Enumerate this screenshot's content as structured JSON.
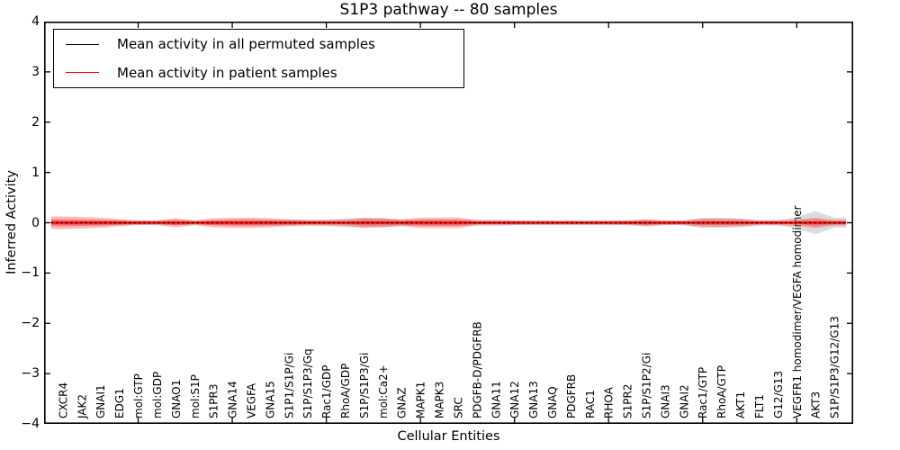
{
  "figure": {
    "title": "S1P3 pathway -- 80 samples"
  },
  "axes": {
    "ylabel": "Inferred Activity",
    "xlabel": "Cellular Entities",
    "ytick_labels": [
      "4",
      "3",
      "2",
      "1",
      "0",
      "−1",
      "−2",
      "−3",
      "−4"
    ],
    "ytick_values": [
      4,
      3,
      2,
      1,
      0,
      -1,
      -2,
      -3,
      -4
    ],
    "xtick_values": [
      5,
      10,
      15,
      20,
      25,
      30,
      35,
      40
    ],
    "frame_color": "#000000"
  },
  "legend": {
    "items": [
      {
        "label": "Mean activity in all permuted samples",
        "color": "#000000"
      },
      {
        "label": "Mean activity in patient samples",
        "color": "#ff0000"
      }
    ]
  },
  "chart_data": {
    "type": "line",
    "title": "S1P3 pathway -- 80 samples",
    "xlabel": "Cellular Entities",
    "ylabel": "Inferred Activity",
    "ylim": [
      -4,
      4
    ],
    "xlim": [
      0,
      43
    ],
    "legend_position": "upper left",
    "grid": false,
    "categories": [
      "CXCR4",
      "JAK2",
      "GNAI1",
      "EDG1",
      "mol:GTP",
      "mol:GDP",
      "GNAO1",
      "mol:S1P",
      "S1PR3",
      "GNA14",
      "VEGFA",
      "GNA15",
      "S1P1/S1P/Gi",
      "S1P/S1P3/Gq",
      "Rac1/GDP",
      "RhoA/GDP",
      "S1P/S1P3/Gi",
      "mol:Ca2+",
      "GNAZ",
      "MAPK1",
      "MAPK3",
      "SRC",
      "PDGFB-D/PDGFRB",
      "GNA11",
      "GNA12",
      "GNA13",
      "GNAQ",
      "PDGFRB",
      "RAC1",
      "RHOA",
      "S1PR2",
      "S1P/S1P2/Gi",
      "GNAI3",
      "GNAI2",
      "Rac1/GTP",
      "RhoA/GTP",
      "AKT1",
      "FLT1",
      "G12/G13",
      "VEGFR1 homodimer/VEGFA homodimer",
      "AKT3",
      "S1P/S1P3/G12/G13"
    ],
    "series": [
      {
        "name": "Mean activity in all permuted samples",
        "color": "#000000",
        "style": "dotted",
        "values": [
          0,
          0,
          0,
          0,
          0,
          0,
          0,
          0,
          0,
          0,
          0,
          0,
          0,
          0,
          0,
          0,
          0,
          0,
          0,
          0,
          0,
          0,
          0,
          0,
          0,
          0,
          0,
          0,
          0,
          0,
          0,
          0,
          0,
          0,
          0,
          0,
          0,
          0,
          0,
          0,
          0,
          0
        ]
      },
      {
        "name": "Mean activity in patient samples",
        "color": "#ff0000",
        "style": "solid",
        "values": [
          0,
          0,
          0,
          0,
          0,
          0,
          0,
          0,
          0,
          0,
          0,
          0,
          0,
          0,
          0,
          0,
          0,
          0,
          0,
          0,
          0,
          0,
          0,
          0,
          0,
          0,
          0,
          0,
          0,
          0,
          0,
          0,
          0,
          0,
          0,
          0,
          0,
          0,
          0,
          0,
          0,
          0
        ]
      }
    ],
    "bands": [
      {
        "name": "permuted-samples-spread",
        "color": "#808080",
        "alpha": 0.28,
        "half_heights": [
          0.05,
          0.05,
          0.05,
          0.05,
          0.05,
          0.05,
          0.05,
          0.05,
          0.05,
          0.055,
          0.055,
          0.055,
          0.055,
          0.055,
          0.06,
          0.09,
          0.09,
          0.09,
          0.06,
          0.06,
          0.06,
          0.06,
          0.06,
          0.06,
          0.05,
          0.05,
          0.05,
          0.05,
          0.05,
          0.05,
          0.05,
          0.06,
          0.05,
          0.05,
          0.1,
          0.1,
          0.09,
          0.055,
          0.055,
          0.115,
          0.23,
          0.1
        ]
      },
      {
        "name": "patient-samples-spread",
        "color": "#ff0000",
        "alpha": 0.28,
        "half_heights": [
          0.125,
          0.115,
          0.1,
          0.07,
          0.045,
          0.045,
          0.09,
          0.045,
          0.09,
          0.1,
          0.1,
          0.09,
          0.07,
          0.055,
          0.055,
          0.06,
          0.1,
          0.09,
          0.07,
          0.1,
          0.105,
          0.105,
          0.05,
          0.05,
          0.045,
          0.04,
          0.04,
          0.04,
          0.04,
          0.04,
          0.045,
          0.07,
          0.045,
          0.045,
          0.08,
          0.08,
          0.07,
          0.045,
          0.045,
          0.06,
          0.1,
          0.055
        ]
      }
    ]
  }
}
